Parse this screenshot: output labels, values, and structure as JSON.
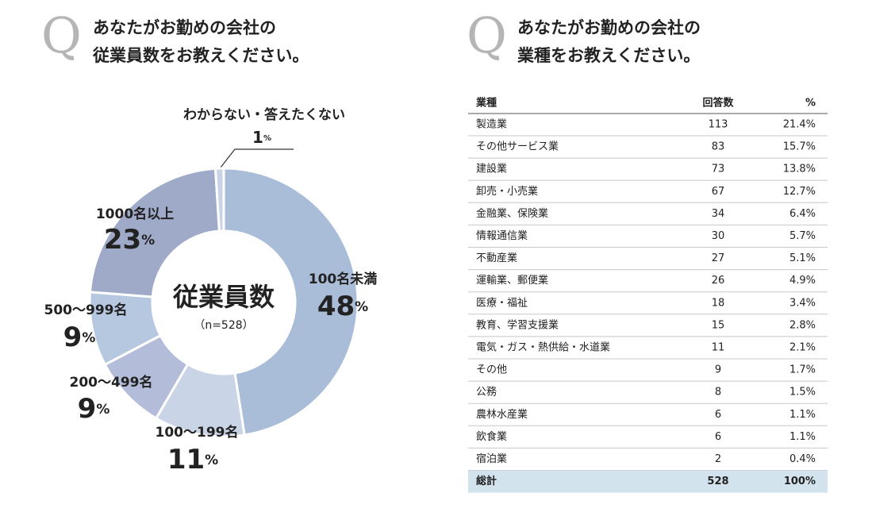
{
  "left": {
    "q_mark": "Q",
    "question": [
      "あなたがお勤めの会社の",
      "従業員数をお教えください。"
    ]
  },
  "right": {
    "q_mark": "Q",
    "question": [
      "あなたがお勤めの会社の",
      "業種をお教えください。"
    ]
  },
  "chart_data": {
    "type": "donut",
    "center_title": "従業員数",
    "center_subtitle": "（n=528）",
    "unit": "%",
    "categories": [
      "100名未満",
      "100～199名",
      "200～499名",
      "500～999名",
      "1000名以上",
      "わからない・答えたくない"
    ],
    "values": [
      48,
      11,
      9,
      9,
      23,
      1
    ],
    "colors": [
      "#a9bdd8",
      "#c9d5e6",
      "#b3bcd9",
      "#b5c8e0",
      "#9fa9c8",
      "#c8d3e6"
    ]
  },
  "table": {
    "header": [
      "業種",
      "回答数",
      "%"
    ],
    "rows": [
      [
        "製造業",
        113,
        "21.4%"
      ],
      [
        "その他サービス業",
        83,
        "15.7%"
      ],
      [
        "建設業",
        73,
        "13.8%"
      ],
      [
        "卸売・小売業",
        67,
        "12.7%"
      ],
      [
        "金融業、保険業",
        34,
        "6.4%"
      ],
      [
        "情報通信業",
        30,
        "5.7%"
      ],
      [
        "不動産業",
        27,
        "5.1%"
      ],
      [
        "運輸業、郵便業",
        26,
        "4.9%"
      ],
      [
        "医療・福祉",
        18,
        "3.4%"
      ],
      [
        "教育、学習支援業",
        15,
        "2.8%"
      ],
      [
        "電気・ガス・熱供給・水道業",
        11,
        "2.1%"
      ],
      [
        "その他",
        9,
        "1.7%"
      ],
      [
        "公務",
        8,
        "1.5%"
      ],
      [
        "農林水産業",
        6,
        "1.1%"
      ],
      [
        "飲食業",
        6,
        "1.1%"
      ],
      [
        "宿泊業",
        2,
        "0.4%"
      ]
    ],
    "total": [
      "総計",
      528,
      "100%"
    ]
  }
}
